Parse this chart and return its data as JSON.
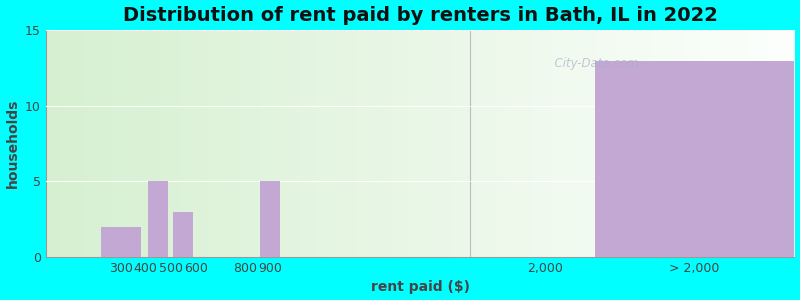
{
  "title": "Distribution of rent paid by renters in Bath, IL in 2022",
  "xlabel": "rent paid ($)",
  "ylabel": "households",
  "ylim": [
    0,
    15
  ],
  "yticks": [
    0,
    5,
    10,
    15
  ],
  "bar_color": "#c4a8d4",
  "background_outer": "#00ffff",
  "title_fontsize": 14,
  "axis_label_fontsize": 10,
  "tick_fontsize": 9,
  "watermark": "  City-Data.com",
  "xlim": [
    0,
    3000
  ],
  "xtick_positions": [
    300,
    400,
    500,
    600,
    800,
    900,
    2000,
    2600
  ],
  "xtick_labels": [
    "300",
    "400",
    "500",
    "600",
    "800",
    "900",
    "2,000",
    "> 2,000"
  ],
  "bar_centers": [
    300,
    450,
    550,
    900,
    2600
  ],
  "bar_widths": [
    160,
    80,
    80,
    80,
    800
  ],
  "bar_heights": [
    2,
    5,
    3,
    5,
    13
  ],
  "separator_x": 1700,
  "right_bar_start": 2100,
  "right_bar_end": 3000,
  "gradient_colors": [
    "#d4edcc",
    "#f0f4e8",
    "#f8faf4"
  ]
}
